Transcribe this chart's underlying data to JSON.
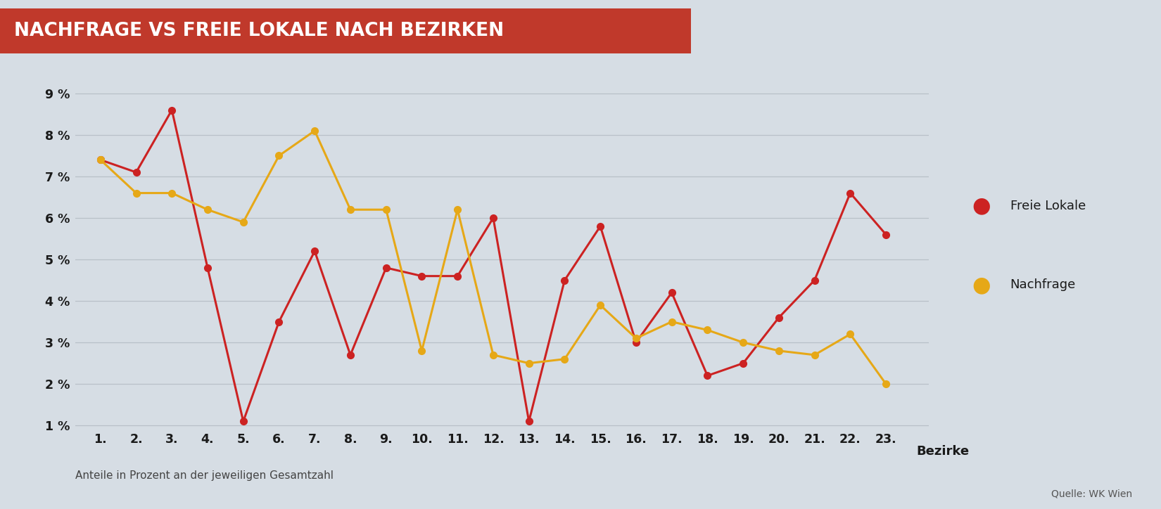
{
  "title": "NACHFRAGE VS FREIE LOKALE NACH BEZIRKEN",
  "title_bg_color": "#c0392b",
  "title_text_color": "#ffffff",
  "bg_color": "#d6dde4",
  "xlabel": "Bezirke",
  "ylabel_note": "Anteile in Prozent an der jeweiligen Gesamtzahl",
  "source_note": "Quelle: WK Wien",
  "ylim": [
    1,
    9
  ],
  "yticks": [
    1,
    2,
    3,
    4,
    5,
    6,
    7,
    8,
    9
  ],
  "ytick_labels": [
    "1 %",
    "2 %",
    "3 %",
    "4 %",
    "5 %",
    "6 %",
    "7 %",
    "8 %",
    "9 %"
  ],
  "districts": [
    1,
    2,
    3,
    4,
    5,
    6,
    7,
    8,
    9,
    10,
    11,
    12,
    13,
    14,
    15,
    16,
    17,
    18,
    19,
    20,
    21,
    22,
    23
  ],
  "district_labels": [
    "1.",
    "2.",
    "3.",
    "4.",
    "5.",
    "6.",
    "7.",
    "8.",
    "9.",
    "10.",
    "11.",
    "12.",
    "13.",
    "14.",
    "15.",
    "16.",
    "17.",
    "18.",
    "19.",
    "20.",
    "21.",
    "22.",
    "23."
  ],
  "freie_lokale": [
    7.4,
    7.1,
    8.6,
    4.8,
    1.1,
    3.5,
    5.2,
    2.7,
    4.8,
    4.6,
    4.6,
    6.0,
    1.1,
    4.5,
    5.8,
    3.0,
    4.2,
    2.2,
    2.5,
    3.6,
    4.5,
    6.6,
    5.6
  ],
  "nachfrage": [
    7.4,
    6.6,
    6.6,
    6.2,
    5.9,
    7.5,
    8.1,
    6.2,
    6.2,
    2.8,
    6.2,
    2.7,
    2.5,
    2.6,
    3.9,
    3.1,
    3.5,
    3.3,
    3.0,
    2.8,
    2.7,
    3.2,
    2.0
  ],
  "freie_color": "#cc2222",
  "nachfrage_color": "#e6a817",
  "line_width": 2.2,
  "marker_size": 7,
  "grid_color": "#b8c0c8",
  "legend_freie_label": "Freie Lokale",
  "legend_nachfrage_label": "Nachfrage"
}
